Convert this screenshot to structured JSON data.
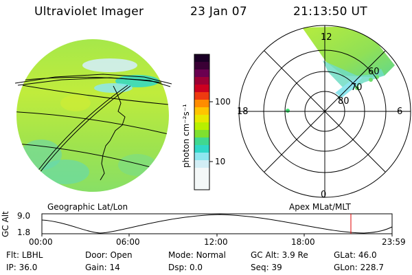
{
  "header": {
    "title": "Ultraviolet Imager",
    "date": "23 Jan 07",
    "time": "21:13:50 UT"
  },
  "colorbar": {
    "unit_label": "photon cm⁻²s⁻¹",
    "ticks": [
      "100",
      "10"
    ],
    "colors": [
      "#1b0026",
      "#3a0035",
      "#6a0050",
      "#9c0035",
      "#cc0020",
      "#ee3a10",
      "#ff8c00",
      "#ffc400",
      "#e8e800",
      "#b8f000",
      "#7fe030",
      "#40d890",
      "#30d8c8",
      "#8ee6ef",
      "#d2eef5",
      "#ffffff"
    ]
  },
  "left_map": {
    "label": "Geographic Lat/Lon"
  },
  "polar_map": {
    "label": "Apex MLat/MLT",
    "mlt_labels": {
      "top": "12",
      "left": "18",
      "right": "6",
      "bottom": "0"
    },
    "lat_labels": [
      "60",
      "70",
      "80"
    ]
  },
  "altitude_plot": {
    "ylabel": "GC Alt",
    "yticks": [
      "9.0",
      "1.8"
    ],
    "xticks": [
      "00:00",
      "06:00",
      "12:00",
      "18:00",
      "23:59"
    ],
    "marker_color": "#e00000"
  },
  "status": {
    "row1": [
      {
        "label": "Flt:",
        "value": "LBHL"
      },
      {
        "label": "Door:",
        "value": "Open"
      },
      {
        "label": "Mode:",
        "value": "Normal"
      },
      {
        "label": "GC Alt:",
        "value": "3.9 Re"
      },
      {
        "label": "GLat:",
        "value": "46.0"
      }
    ],
    "row2": [
      {
        "label": "IP:",
        "value": "36.0"
      },
      {
        "label": "Gain:",
        "value": "14"
      },
      {
        "label": "Dsp:",
        "value": "0.0"
      },
      {
        "label": "Seq:",
        "value": "39"
      },
      {
        "label": "GLon:",
        "value": "228.7"
      }
    ]
  }
}
